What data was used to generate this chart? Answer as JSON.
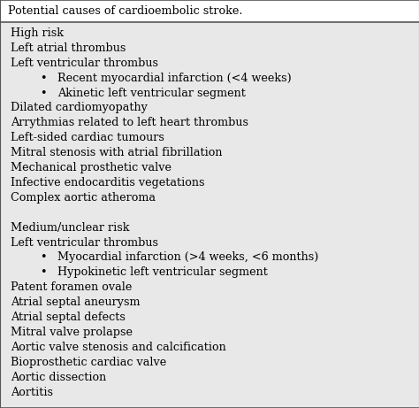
{
  "title": "Potential causes of cardioembolic stroke.",
  "bg_color": "#e8e8e8",
  "title_bg_color": "#ffffff",
  "font_family": "DejaVu Serif",
  "font_size": 9.2,
  "title_font_size": 9.2,
  "lines": [
    {
      "text": "High risk",
      "indent": 0,
      "bullet": false
    },
    {
      "text": "Left atrial thrombus",
      "indent": 0,
      "bullet": false
    },
    {
      "text": "Left ventricular thrombus",
      "indent": 0,
      "bullet": false
    },
    {
      "text": "Recent myocardial infarction (<4 weeks)",
      "indent": 1,
      "bullet": true
    },
    {
      "text": "Akinetic left ventricular segment",
      "indent": 1,
      "bullet": true
    },
    {
      "text": "Dilated cardiomyopathy",
      "indent": 0,
      "bullet": false
    },
    {
      "text": "Arrythmias related to left heart thrombus",
      "indent": 0,
      "bullet": false
    },
    {
      "text": "Left-sided cardiac tumours",
      "indent": 0,
      "bullet": false
    },
    {
      "text": "Mitral stenosis with atrial fibrillation",
      "indent": 0,
      "bullet": false
    },
    {
      "text": "Mechanical prosthetic valve",
      "indent": 0,
      "bullet": false
    },
    {
      "text": "Infective endocarditis vegetations",
      "indent": 0,
      "bullet": false
    },
    {
      "text": "Complex aortic atheroma",
      "indent": 0,
      "bullet": false
    },
    {
      "text": "",
      "indent": 0,
      "bullet": false
    },
    {
      "text": "Medium/unclear risk",
      "indent": 0,
      "bullet": false
    },
    {
      "text": "Left ventricular thrombus",
      "indent": 0,
      "bullet": false
    },
    {
      "text": "Myocardial infarction (>4 weeks, <6 months)",
      "indent": 1,
      "bullet": true
    },
    {
      "text": "Hypokinetic left ventricular segment",
      "indent": 1,
      "bullet": true
    },
    {
      "text": "Patent foramen ovale",
      "indent": 0,
      "bullet": false
    },
    {
      "text": "Atrial septal aneurysm",
      "indent": 0,
      "bullet": false
    },
    {
      "text": "Atrial septal defects",
      "indent": 0,
      "bullet": false
    },
    {
      "text": "Mitral valve prolapse",
      "indent": 0,
      "bullet": false
    },
    {
      "text": "Aortic valve stenosis and calcification",
      "indent": 0,
      "bullet": false
    },
    {
      "text": "Bioprosthetic cardiac valve",
      "indent": 0,
      "bullet": false
    },
    {
      "text": "Aortic dissection",
      "indent": 0,
      "bullet": false
    },
    {
      "text": "Aortitis",
      "indent": 0,
      "bullet": false
    }
  ]
}
